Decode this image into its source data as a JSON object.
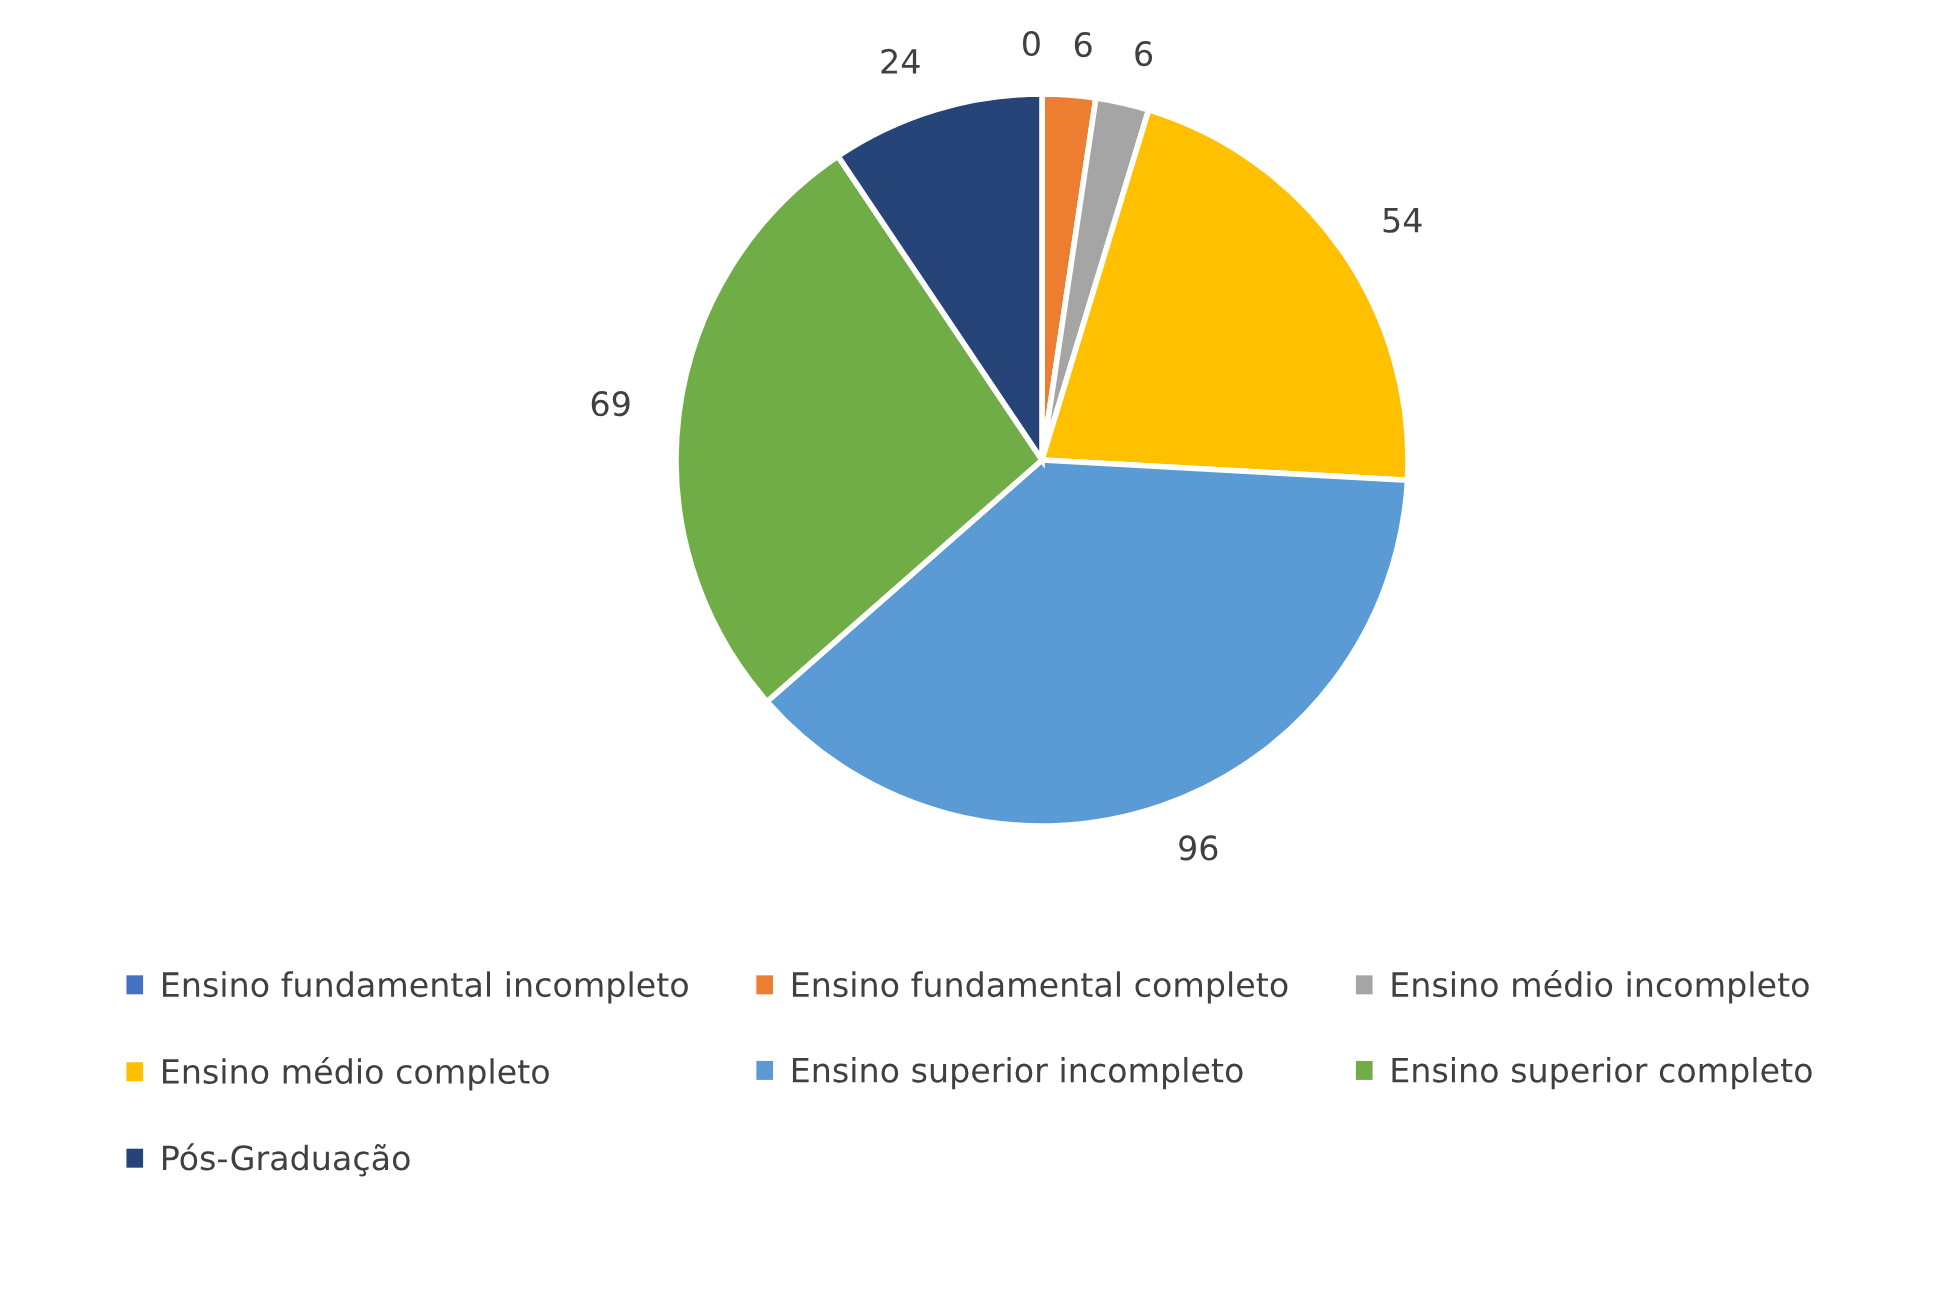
{
  "chart_data": {
    "type": "pie",
    "categories": [
      "Ensino fundamental incompleto",
      "Ensino fundamental completo",
      "Ensino médio incompleto",
      "Ensino médio completo",
      "Ensino superior incompleto",
      "Ensino superior completo",
      "Pós-Graduação"
    ],
    "values": [
      0,
      6,
      6,
      54,
      96,
      69,
      24
    ],
    "colors": [
      "#4472c4",
      "#ed7d31",
      "#a5a5a5",
      "#ffc000",
      "#5b9bd5",
      "#70ad47",
      "#264478"
    ],
    "value_labels": [
      "0",
      "6",
      "6",
      "54",
      "96",
      "69",
      "24"
    ],
    "legend": "bottom"
  }
}
